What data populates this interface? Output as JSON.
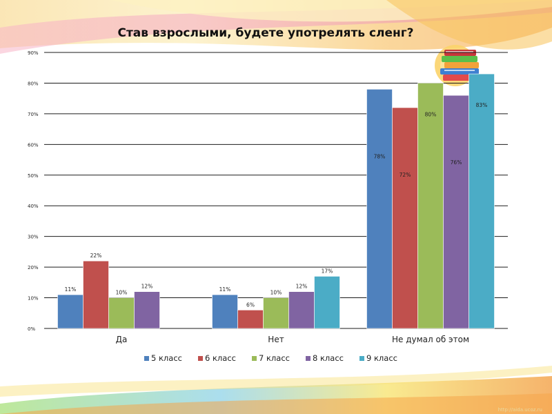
{
  "slide": {
    "footer_url": "http://aida.ucoz.ru"
  },
  "colors": {
    "series": [
      "#4f81bd",
      "#c0504d",
      "#9bbb59",
      "#8064a2",
      "#4bacc6"
    ],
    "gridline": "#1a1a1a",
    "text": "#222222"
  },
  "icons": [
    "books-icon"
  ],
  "chart_data": {
    "type": "bar",
    "title": "Став взрослыми, будете употрелять сленг?",
    "categories": [
      "Да",
      "Нет",
      "Не думал об этом"
    ],
    "ylim": [
      0,
      90
    ],
    "yticks": [
      "0%",
      "10%",
      "20%",
      "30%",
      "40%",
      "50%",
      "60%",
      "70%",
      "80%",
      "90%"
    ],
    "grid": true,
    "legend_position": "bottom",
    "series": [
      {
        "name": "5 класс",
        "values": [
          11,
          11,
          78
        ],
        "labels": [
          "11%",
          "11%",
          "78%"
        ]
      },
      {
        "name": "6 класс",
        "values": [
          22,
          6,
          72
        ],
        "labels": [
          "22%",
          "6%",
          "72%"
        ]
      },
      {
        "name": "7 класс",
        "values": [
          10,
          10,
          80
        ],
        "labels": [
          "10%",
          "10%",
          "80%"
        ]
      },
      {
        "name": "8 класс",
        "values": [
          12,
          12,
          76
        ],
        "labels": [
          "12%",
          "12%",
          "76%"
        ]
      },
      {
        "name": "9 класс",
        "values": [
          0,
          17,
          83
        ],
        "labels": [
          "",
          "17%",
          "83%"
        ]
      }
    ]
  }
}
